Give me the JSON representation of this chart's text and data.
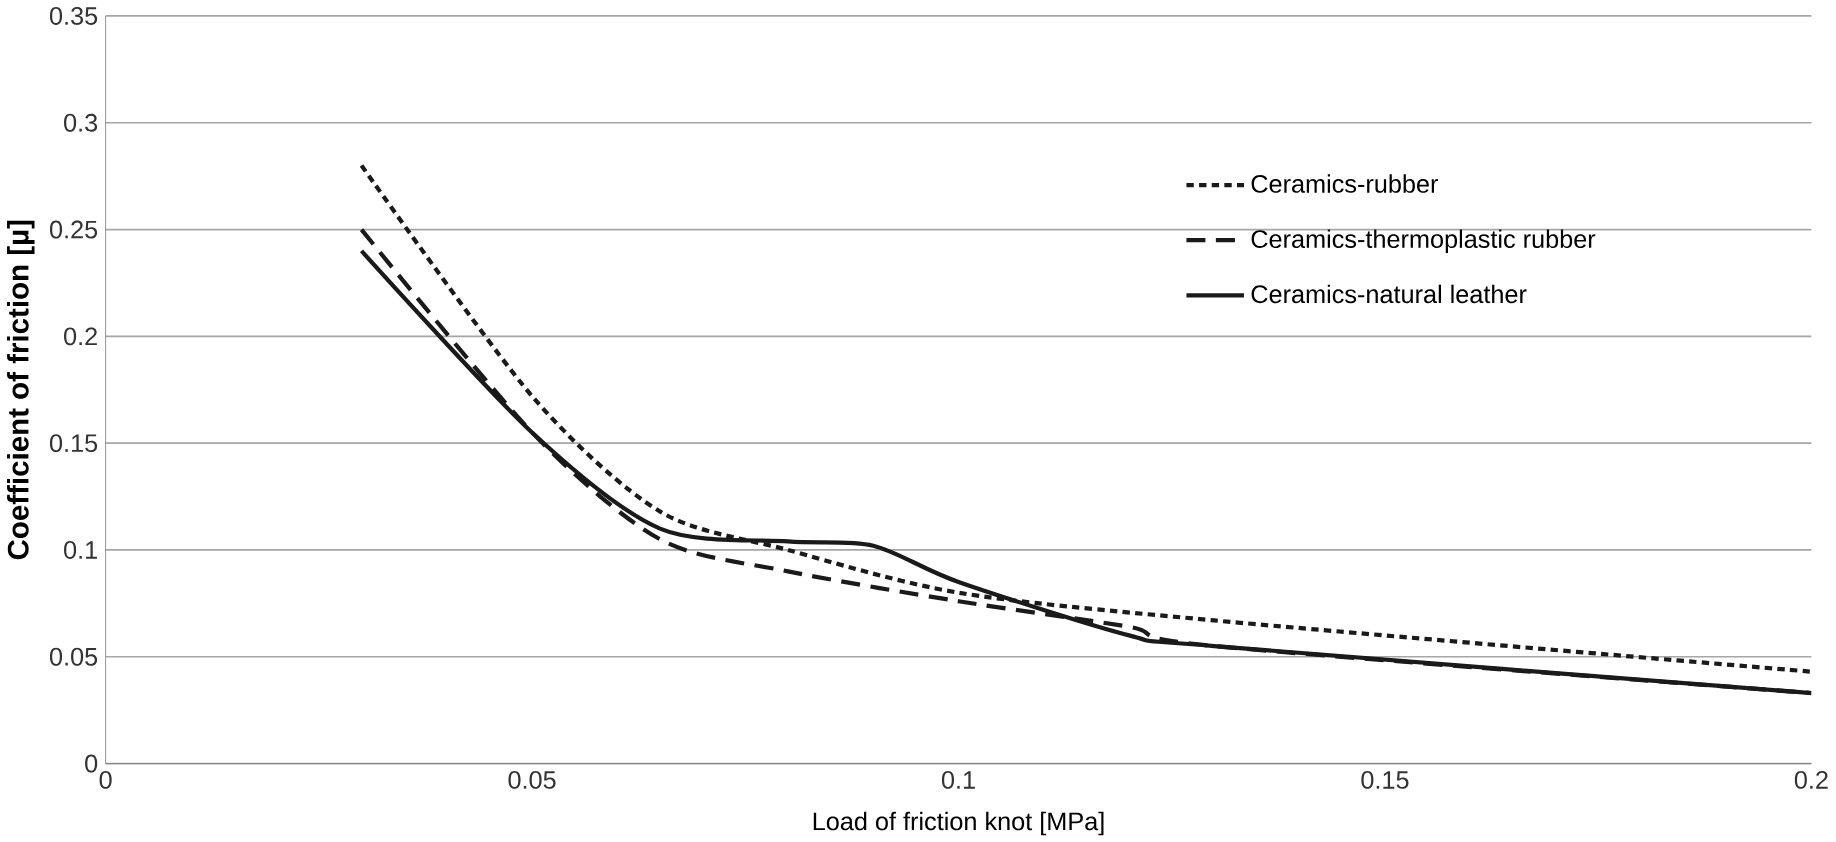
{
  "chart_data": {
    "type": "line",
    "xlabel": "Load of friction knot [MPa]",
    "ylabel": "Coefficient of friction [µ]",
    "xlim": [
      0,
      0.2
    ],
    "xticks": [
      0,
      0.05,
      0.1,
      0.15,
      0.2
    ],
    "ylim": [
      0,
      0.35
    ],
    "yticks": [
      0,
      0.05,
      0.1,
      0.15,
      0.2,
      0.25,
      0.3,
      0.35
    ],
    "grid": "y",
    "legend": "top right",
    "series": [
      {
        "name": "Ceramics-rubber",
        "color": "#1a1a1a",
        "line_style": "dotted",
        "x": [
          0.03,
          0.05,
          0.065,
          0.08,
          0.1,
          0.13,
          0.2
        ],
        "values": [
          0.28,
          0.172,
          0.118,
          0.1,
          0.08,
          0.067,
          0.043
        ]
      },
      {
        "name": "Ceramics-thermoplastic rubber",
        "color": "#1a1a1a",
        "line_style": "dashed",
        "x": [
          0.03,
          0.05,
          0.065,
          0.08,
          0.1,
          0.12,
          0.13,
          0.2
        ],
        "values": [
          0.25,
          0.155,
          0.105,
          0.09,
          0.076,
          0.064,
          0.055,
          0.033
        ]
      },
      {
        "name": "Ceramics-natural leather",
        "color": "#1a1a1a",
        "line_style": "solid",
        "x": [
          0.03,
          0.05,
          0.065,
          0.08,
          0.09,
          0.1,
          0.12,
          0.13,
          0.2
        ],
        "values": [
          0.24,
          0.155,
          0.11,
          0.104,
          0.102,
          0.085,
          0.06,
          0.055,
          0.033
        ]
      }
    ]
  }
}
